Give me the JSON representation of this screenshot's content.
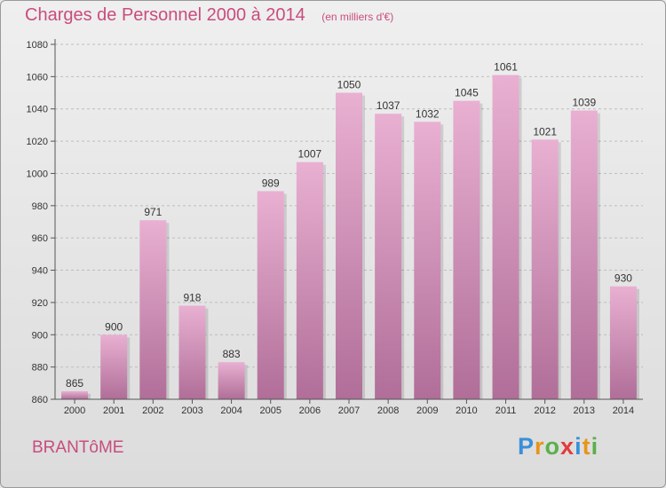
{
  "chart_data": {
    "type": "bar",
    "title": "Charges de Personnel 2000 à 2014",
    "subtitle": "(en milliers d'€)",
    "categories": [
      "2000",
      "2001",
      "2002",
      "2003",
      "2004",
      "2005",
      "2006",
      "2007",
      "2008",
      "2009",
      "2010",
      "2011",
      "2012",
      "2013",
      "2014"
    ],
    "values": [
      865,
      900,
      971,
      918,
      883,
      989,
      1007,
      1050,
      1037,
      1032,
      1045,
      1061,
      1021,
      1039,
      930
    ],
    "ylim": [
      860,
      1080
    ],
    "yticks": [
      860,
      880,
      900,
      920,
      940,
      960,
      980,
      1000,
      1020,
      1040,
      1060,
      1080
    ],
    "grid": true,
    "legend": "none",
    "colors": {
      "bar_top": "#e9b0d2",
      "bar_bottom": "#b06e98",
      "title": "#c94c7e"
    }
  },
  "place_name": "BRANTôME",
  "logo": {
    "letters": [
      "P",
      "r",
      "o",
      "x",
      "i",
      "t",
      "i"
    ],
    "colors": [
      "#3a8fd9",
      "#e8941c",
      "#5bb04a",
      "#e23b3b",
      "#3a8fd9",
      "#e8941c",
      "#5bb04a"
    ]
  }
}
